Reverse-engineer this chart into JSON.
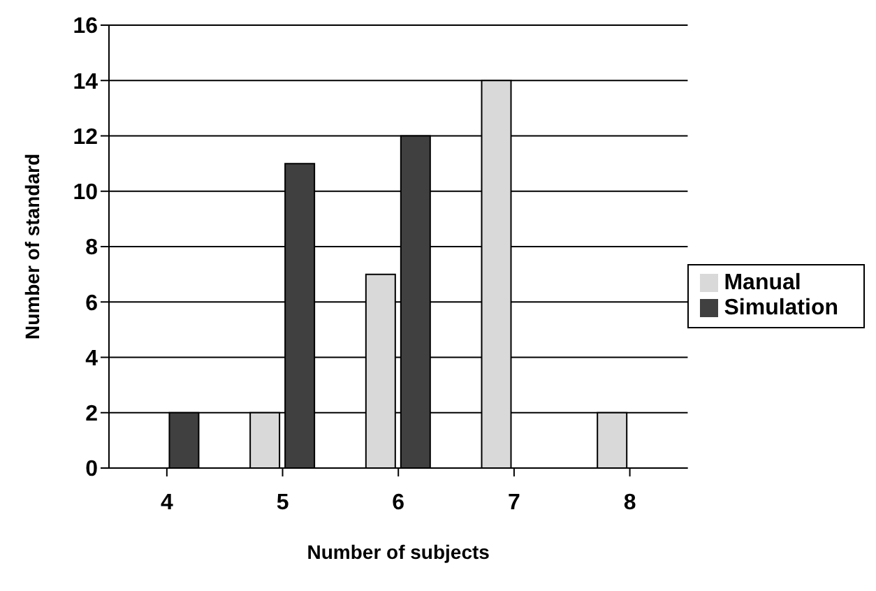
{
  "chart_data": {
    "type": "bar",
    "xlabel": "Number of subjects",
    "ylabel": "Number of standard",
    "categories": [
      "4",
      "5",
      "6",
      "7",
      "8"
    ],
    "series": [
      {
        "name": "Manual",
        "color": "#d9d9d9",
        "values": [
          0,
          2,
          7,
          14,
          2
        ]
      },
      {
        "name": "Simulation",
        "color": "#404040",
        "values": [
          2,
          11,
          12,
          0,
          0
        ]
      }
    ],
    "ylim": [
      0,
      16
    ],
    "yticks": [
      0,
      2,
      4,
      6,
      8,
      10,
      12,
      14,
      16
    ],
    "grid": "y",
    "legend": "right"
  }
}
